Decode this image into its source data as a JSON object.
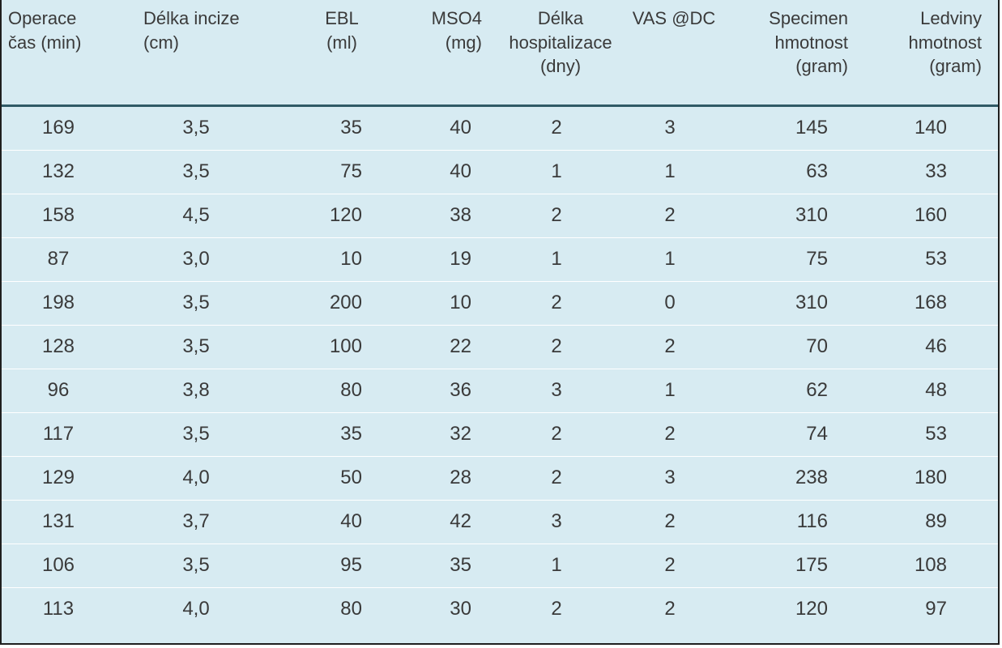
{
  "table": {
    "headers": [
      "Operace\nčas (min)",
      "Délka incize\n(cm)",
      "EBL\n(ml)",
      "MSO4\n(mg)",
      "Délka\nhospitalizace\n(dny)",
      "VAS @DC",
      "Specimen\nhmotnost\n(gram)",
      "Ledviny\nhmotnost\n(gram)"
    ],
    "rows": [
      [
        "169",
        "3,5",
        "35",
        "40",
        "2",
        "3",
        "145",
        "140"
      ],
      [
        "132",
        "3,5",
        "75",
        "40",
        "1",
        "1",
        "63",
        "33"
      ],
      [
        "158",
        "4,5",
        "120",
        "38",
        "2",
        "2",
        "310",
        "160"
      ],
      [
        "87",
        "3,0",
        "10",
        "19",
        "1",
        "1",
        "75",
        "53"
      ],
      [
        "198",
        "3,5",
        "200",
        "10",
        "2",
        "0",
        "310",
        "168"
      ],
      [
        "128",
        "3,5",
        "100",
        "22",
        "2",
        "2",
        "70",
        "46"
      ],
      [
        "96",
        "3,8",
        "80",
        "36",
        "3",
        "1",
        "62",
        "48"
      ],
      [
        "117",
        "3,5",
        "35",
        "32",
        "2",
        "2",
        "74",
        "53"
      ],
      [
        "129",
        "4,0",
        "50",
        "28",
        "2",
        "3",
        "238",
        "180"
      ],
      [
        "131",
        "3,7",
        "40",
        "42",
        "3",
        "2",
        "116",
        "89"
      ],
      [
        "106",
        "3,5",
        "95",
        "35",
        "1",
        "2",
        "175",
        "108"
      ],
      [
        "113",
        "4,0",
        "80",
        "30",
        "2",
        "2",
        "120",
        "97"
      ]
    ]
  },
  "colors": {
    "background": "#d7ebf2",
    "header_rule": "#2f5a66",
    "row_divider": "#ffffff",
    "text": "#3a3a3a"
  }
}
